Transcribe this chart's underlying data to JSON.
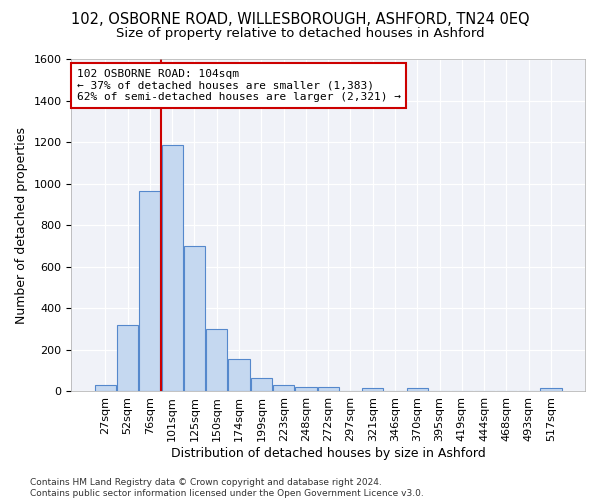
{
  "title": "102, OSBORNE ROAD, WILLESBOROUGH, ASHFORD, TN24 0EQ",
  "subtitle": "Size of property relative to detached houses in Ashford",
  "xlabel": "Distribution of detached houses by size in Ashford",
  "ylabel": "Number of detached properties",
  "categories": [
    "27sqm",
    "52sqm",
    "76sqm",
    "101sqm",
    "125sqm",
    "150sqm",
    "174sqm",
    "199sqm",
    "223sqm",
    "248sqm",
    "272sqm",
    "297sqm",
    "321sqm",
    "346sqm",
    "370sqm",
    "395sqm",
    "419sqm",
    "444sqm",
    "468sqm",
    "493sqm",
    "517sqm"
  ],
  "values": [
    30,
    320,
    965,
    1185,
    700,
    300,
    155,
    65,
    30,
    20,
    20,
    0,
    15,
    0,
    15,
    0,
    0,
    0,
    0,
    0,
    15
  ],
  "bar_color": "#c5d8f0",
  "bar_edge_color": "#5588cc",
  "vline_color": "#cc0000",
  "vline_index": 3,
  "annotation_line1": "102 OSBORNE ROAD: 104sqm",
  "annotation_line2": "← 37% of detached houses are smaller (1,383)",
  "annotation_line3": "62% of semi-detached houses are larger (2,321) →",
  "annotation_box_color": "#ffffff",
  "annotation_box_edge_color": "#cc0000",
  "ylim": [
    0,
    1600
  ],
  "yticks": [
    0,
    200,
    400,
    600,
    800,
    1000,
    1200,
    1400,
    1600
  ],
  "bg_color": "#ffffff",
  "plot_bg_color": "#f0f2f8",
  "footer": "Contains HM Land Registry data © Crown copyright and database right 2024.\nContains public sector information licensed under the Open Government Licence v3.0.",
  "title_fontsize": 10.5,
  "subtitle_fontsize": 9.5,
  "xlabel_fontsize": 9,
  "ylabel_fontsize": 9,
  "tick_fontsize": 8,
  "footer_fontsize": 6.5,
  "ann_fontsize": 8
}
